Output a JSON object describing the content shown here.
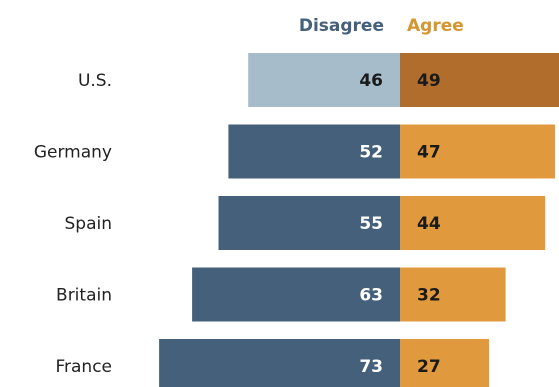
{
  "chart_data": {
    "type": "bar",
    "orientation": "diverging-horizontal",
    "categories": [
      "U.S.",
      "Germany",
      "Spain",
      "Britain",
      "France"
    ],
    "series": [
      {
        "name": "Disagree",
        "values": [
          46,
          52,
          55,
          63,
          73
        ]
      },
      {
        "name": "Agree",
        "values": [
          49,
          47,
          44,
          32,
          27
        ]
      }
    ],
    "legend_placement": "top",
    "grid": false,
    "colors": {
      "disagree": "#45607a",
      "disagree_highlight": "#a6bccb",
      "agree": "#e0993c",
      "agree_highlight": "#b06d2b",
      "disagree_legend": "#45607a",
      "agree_legend": "#d5952f",
      "disagree_value_text": "#ffffff",
      "disagree_value_text_highlight": "#1a1a1a",
      "agree_value_text": "#1a1a1a"
    },
    "highlight_category": "U.S."
  }
}
